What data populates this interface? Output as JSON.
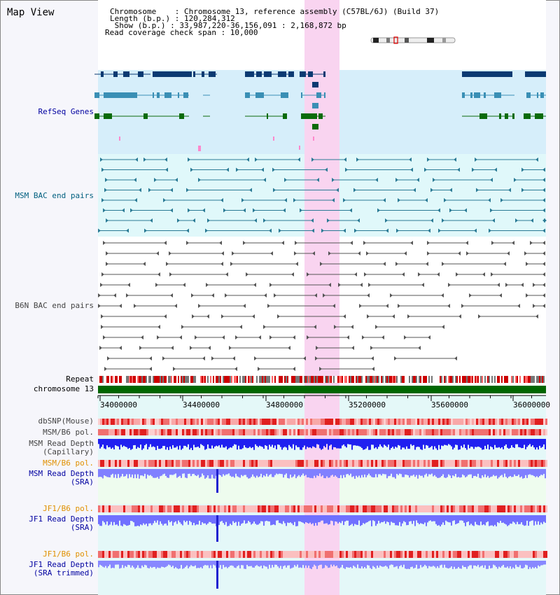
{
  "view_title": "Map View",
  "info": {
    "chromosome": "Chromosome    : Chromosome 13, reference assembly (C57BL/6J) (Build 37)",
    "length": "Length (b.p.) : 120,284,312",
    "show": " Show (b.p.) : 33,987,220-36,156,091 : 2,168,872 bp",
    "span": "Read coverage check span : 10,000"
  },
  "tracks": {
    "refseq": "RefSeq Genes",
    "msm_bac": "MSM BAC end pairs",
    "b6n_bac": "B6N BAC end pairs",
    "repeat": "Repeat",
    "chromosome": "chromosome 13",
    "dbsnp": "dbSNP(Mouse)",
    "msm_b6_pol_1": "MSM/B6 pol.",
    "msm_read_depth_cap": "MSM Read Depth\n(Capillary)",
    "msm_b6_pol_2": "MSM/B6 pol.",
    "msm_read_depth_sra": "MSM Read Depth\n(SRA)",
    "jf1_b6_pol_1": "JF1/B6 pol.",
    "jf1_read_depth_sra": "JF1 Read Depth\n(SRA)",
    "jf1_b6_pol_2": "JF1/B6 pol.",
    "jf1_read_depth_trim": "JF1 Read Depth\n(SRA trimmed)"
  },
  "ruler": {
    "ticks": [
      "34000000",
      "34400000",
      "34800000",
      "35200000",
      "35600000",
      "36000000"
    ]
  },
  "colors": {
    "highlight": "#f9d4f0",
    "refseq_bg": "#d6eefa",
    "msm_bg": "#e0f8fa",
    "gene_dark": "#0b3a72",
    "gene_mid": "#3a8fb5",
    "gene_green": "#0a6b0a",
    "chromosome_bar": "#006600",
    "read_depth_blue": "#2020f0",
    "read_depth_light": "#8080ff",
    "pol_red": "#e84040"
  }
}
